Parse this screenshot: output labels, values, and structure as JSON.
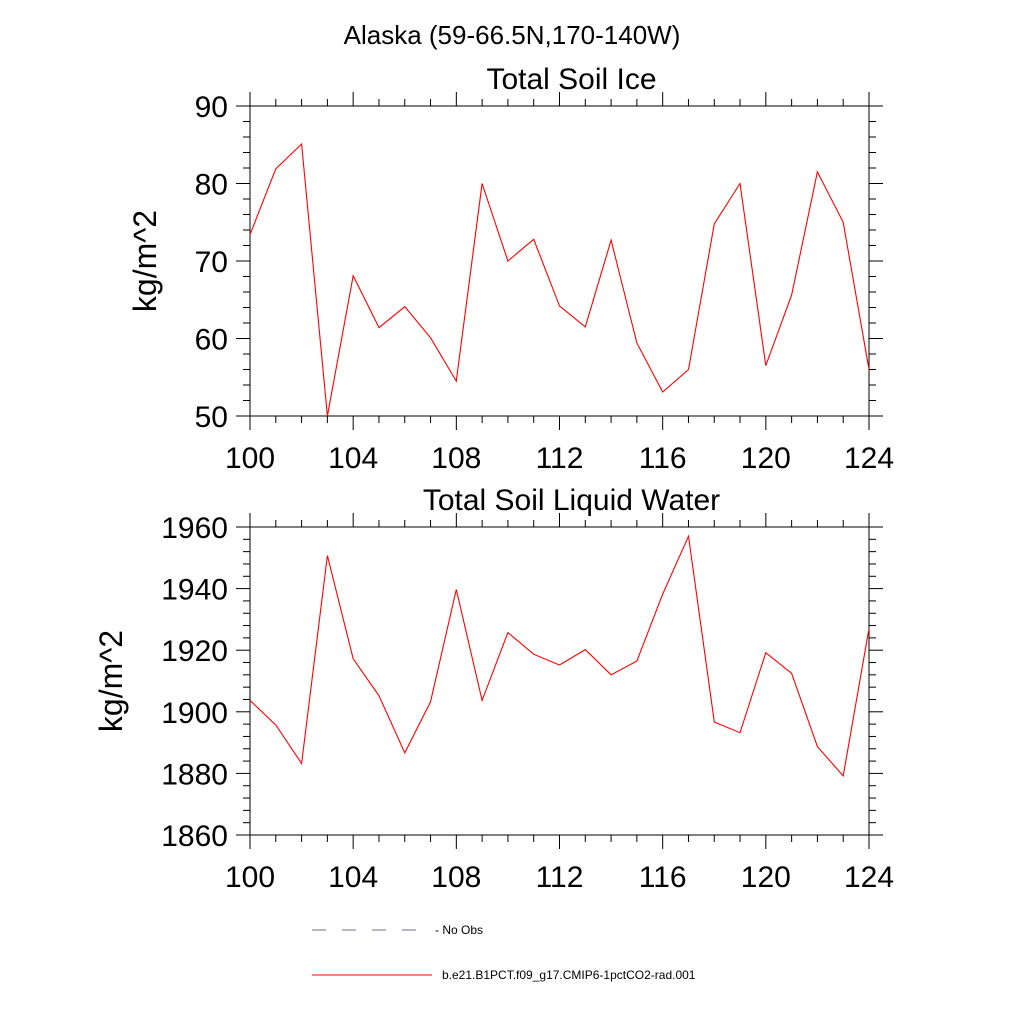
{
  "suptitle": "Alaska (59-66.5N,170-140W)",
  "colors": {
    "model_line": "#ff0000",
    "obs_line": "#6b6b9a",
    "axis": "#000000"
  },
  "chart_data": [
    {
      "type": "line",
      "title": "Total Soil Ice",
      "xlabel": "",
      "ylabel": "kg/m^2",
      "xlim": [
        100,
        124
      ],
      "ylim": [
        50,
        90
      ],
      "xticks": [
        100,
        104,
        108,
        112,
        116,
        120,
        124
      ],
      "yticks": [
        50,
        60,
        70,
        80,
        90
      ],
      "grid": false,
      "x": [
        100,
        101,
        102,
        103,
        104,
        105,
        106,
        107,
        108,
        109,
        110,
        111,
        112,
        113,
        114,
        115,
        116,
        117,
        118,
        119,
        120,
        121,
        122,
        123,
        124
      ],
      "series": [
        {
          "name": "b.e21.B1PCT.f09_g17.CMIP6-1pctCO2-rad.001",
          "values": [
            73.4,
            81.9,
            85.1,
            50.0,
            68.1,
            61.4,
            64.1,
            60.1,
            54.5,
            80.0,
            70.0,
            72.8,
            64.2,
            61.5,
            72.7,
            59.4,
            53.1,
            56.0,
            74.8,
            80.0,
            56.5,
            65.6,
            81.5,
            75.0,
            56.0
          ]
        }
      ]
    },
    {
      "type": "line",
      "title": "Total Soil Liquid Water",
      "xlabel": "",
      "ylabel": "kg/m^2",
      "xlim": [
        100,
        124
      ],
      "ylim": [
        1860,
        1960
      ],
      "xticks": [
        100,
        104,
        108,
        112,
        116,
        120,
        124
      ],
      "yticks": [
        1860,
        1880,
        1900,
        1920,
        1940,
        1960
      ],
      "grid": false,
      "x": [
        100,
        101,
        102,
        103,
        104,
        105,
        106,
        107,
        108,
        109,
        110,
        111,
        112,
        113,
        114,
        115,
        116,
        117,
        118,
        119,
        120,
        121,
        122,
        123,
        124
      ],
      "series": [
        {
          "name": "b.e21.B1PCT.f09_g17.CMIP6-1pctCO2-rad.001",
          "values": [
            1903.7,
            1895.7,
            1883.2,
            1950.7,
            1917.2,
            1905.2,
            1886.7,
            1903.2,
            1939.7,
            1903.7,
            1925.7,
            1918.7,
            1915.2,
            1920.2,
            1912.0,
            1916.5,
            1938.2,
            1957.0,
            1896.7,
            1893.2,
            1919.2,
            1912.5,
            1888.7,
            1879.2,
            1927.0
          ]
        }
      ]
    }
  ],
  "legend": {
    "placement": "bottom",
    "items": [
      {
        "label": "No Obs",
        "style": "dashed",
        "color": "#6b6b9a"
      },
      {
        "label": "b.e21.B1PCT.f09_g17.CMIP6-1pctCO2-rad.001",
        "style": "solid",
        "color": "#ff0000"
      }
    ]
  }
}
